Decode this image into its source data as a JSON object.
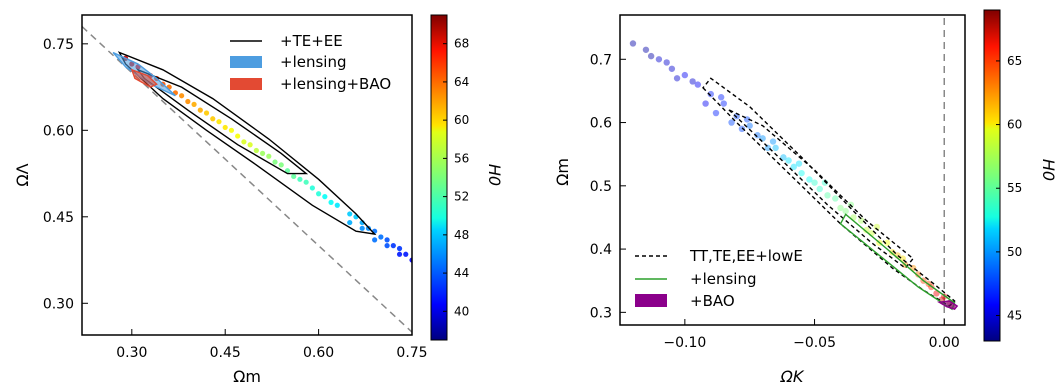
{
  "chart_data": [
    {
      "type": "scatter",
      "xlabel": "Ωm",
      "ylabel": "ΩΛ",
      "xlim": [
        0.22,
        0.75
      ],
      "ylim": [
        0.245,
        0.8
      ],
      "xticks": [
        0.3,
        0.45,
        0.6,
        0.75
      ],
      "xtick_labels": [
        "0.30",
        "0.45",
        "0.60",
        "0.75"
      ],
      "yticks": [
        0.3,
        0.45,
        0.6,
        0.75
      ],
      "ytick_labels": [
        "0.30",
        "0.45",
        "0.60",
        "0.75"
      ],
      "grid": false,
      "reference_line": {
        "style": "dashed",
        "color": "#888888",
        "relation": "ΩΛ = 1 − Ωm",
        "points": [
          [
            0.22,
            0.78
          ],
          [
            0.755,
            0.245
          ]
        ]
      },
      "legend": {
        "position": "top-right",
        "entries": [
          {
            "label": "+TE+EE",
            "style": "line",
            "color": "#000000"
          },
          {
            "label": "+lensing",
            "style": "patch",
            "color": "#4d9de0"
          },
          {
            "label": "+lensing+BAO",
            "style": "patch",
            "color": "#e34a33"
          }
        ]
      },
      "colorbar": {
        "label": "H0",
        "min": 37,
        "max": 71,
        "ticks": [
          40,
          44,
          48,
          52,
          56,
          60,
          64,
          68
        ],
        "tick_labels": [
          "40",
          "44",
          "48",
          "52",
          "56",
          "60",
          "64",
          "68"
        ]
      },
      "series": [
        {
          "name": "+TE+EE",
          "kind": "contour",
          "color": "#000000",
          "outer": [
            [
              0.28,
              0.735
            ],
            [
              0.35,
              0.705
            ],
            [
              0.43,
              0.655
            ],
            [
              0.52,
              0.585
            ],
            [
              0.6,
              0.515
            ],
            [
              0.66,
              0.455
            ],
            [
              0.69,
              0.42
            ],
            [
              0.66,
              0.425
            ],
            [
              0.59,
              0.47
            ],
            [
              0.5,
              0.54
            ],
            [
              0.42,
              0.6
            ],
            [
              0.35,
              0.655
            ],
            [
              0.29,
              0.715
            ],
            [
              0.28,
              0.735
            ]
          ],
          "inner": [
            [
              0.31,
              0.705
            ],
            [
              0.38,
              0.675
            ],
            [
              0.46,
              0.62
            ],
            [
              0.54,
              0.56
            ],
            [
              0.58,
              0.525
            ],
            [
              0.55,
              0.525
            ],
            [
              0.47,
              0.575
            ],
            [
              0.39,
              0.635
            ],
            [
              0.32,
              0.69
            ],
            [
              0.31,
              0.705
            ]
          ]
        },
        {
          "name": "+lensing",
          "kind": "contour",
          "color": "#4d9de0",
          "outer": [
            [
              0.27,
              0.735
            ],
            [
              0.31,
              0.715
            ],
            [
              0.34,
              0.69
            ],
            [
              0.37,
              0.66
            ],
            [
              0.33,
              0.68
            ],
            [
              0.29,
              0.71
            ],
            [
              0.27,
              0.735
            ]
          ]
        },
        {
          "name": "+lensing+BAO",
          "kind": "contour",
          "color": "#e34a33",
          "outer": [
            [
              0.3,
              0.705
            ],
            [
              0.325,
              0.695
            ],
            [
              0.34,
              0.68
            ],
            [
              0.33,
              0.675
            ],
            [
              0.305,
              0.69
            ],
            [
              0.3,
              0.705
            ]
          ]
        },
        {
          "name": "samples",
          "kind": "scatter",
          "colored_by": "H0",
          "points": [
            [
              0.29,
              0.725,
              69
            ],
            [
              0.31,
              0.71,
              67
            ],
            [
              0.33,
              0.695,
              66
            ],
            [
              0.35,
              0.68,
              64
            ],
            [
              0.37,
              0.665,
              63
            ],
            [
              0.39,
              0.65,
              62
            ],
            [
              0.41,
              0.635,
              61
            ],
            [
              0.43,
              0.62,
              60
            ],
            [
              0.45,
              0.605,
              59
            ],
            [
              0.47,
              0.59,
              58
            ],
            [
              0.49,
              0.575,
              57
            ],
            [
              0.51,
              0.56,
              55
            ],
            [
              0.53,
              0.545,
              54
            ],
            [
              0.55,
              0.53,
              53
            ],
            [
              0.57,
              0.515,
              52
            ],
            [
              0.59,
              0.5,
              51
            ],
            [
              0.61,
              0.485,
              50
            ],
            [
              0.63,
              0.47,
              49
            ],
            [
              0.65,
              0.455,
              48
            ],
            [
              0.67,
              0.44,
              47
            ],
            [
              0.68,
              0.43,
              46
            ],
            [
              0.69,
              0.425,
              45
            ],
            [
              0.7,
              0.415,
              45
            ],
            [
              0.71,
              0.41,
              44
            ],
            [
              0.72,
              0.4,
              43
            ],
            [
              0.73,
              0.395,
              43
            ],
            [
              0.74,
              0.385,
              42
            ],
            [
              0.75,
              0.375,
              41
            ],
            [
              0.66,
              0.45,
              48
            ],
            [
              0.62,
              0.475,
              50
            ],
            [
              0.58,
              0.51,
              52
            ],
            [
              0.54,
              0.54,
              54
            ],
            [
              0.5,
              0.565,
              56
            ],
            [
              0.46,
              0.6,
              58
            ],
            [
              0.42,
              0.63,
              60
            ],
            [
              0.38,
              0.66,
              62
            ],
            [
              0.34,
              0.69,
              65
            ],
            [
              0.3,
              0.715,
              68
            ],
            [
              0.65,
              0.44,
              47
            ],
            [
              0.67,
              0.43,
              46
            ],
            [
              0.69,
              0.41,
              45
            ],
            [
              0.71,
              0.4,
              44
            ],
            [
              0.73,
              0.385,
              42
            ],
            [
              0.6,
              0.49,
              51
            ],
            [
              0.56,
              0.52,
              53
            ],
            [
              0.52,
              0.555,
              55
            ],
            [
              0.48,
              0.58,
              57
            ],
            [
              0.44,
              0.615,
              59
            ],
            [
              0.4,
              0.645,
              61
            ],
            [
              0.36,
              0.675,
              63
            ]
          ]
        }
      ]
    },
    {
      "type": "scatter",
      "xlabel": "ΩK",
      "ylabel": "Ωm",
      "xlim": [
        -0.125,
        0.008
      ],
      "ylim": [
        0.28,
        0.77
      ],
      "xticks": [
        -0.1,
        -0.05,
        0.0
      ],
      "xtick_labels": [
        "−0.10",
        "−0.05",
        "0.00"
      ],
      "yticks": [
        0.3,
        0.4,
        0.5,
        0.6,
        0.7
      ],
      "ytick_labels": [
        "0.3",
        "0.4",
        "0.5",
        "0.6",
        "0.7"
      ],
      "grid": false,
      "reference_line": {
        "style": "dashed",
        "color": "#888888",
        "relation": "ΩK = 0",
        "points": [
          [
            0.0,
            0.28
          ],
          [
            0.0,
            0.77
          ]
        ]
      },
      "legend": {
        "position": "lower-left",
        "entries": [
          {
            "label": "TT,TE,EE+lowE",
            "style": "dashed-line",
            "color": "#000000"
          },
          {
            "label": "+lensing",
            "style": "line",
            "color": "#2ca02c"
          },
          {
            "label": "+BAO",
            "style": "patch",
            "color": "#8b008b"
          }
        ]
      },
      "colorbar": {
        "label": "H0",
        "min": 43,
        "max": 69,
        "ticks": [
          45,
          50,
          55,
          60,
          65
        ],
        "tick_labels": [
          "45",
          "50",
          "55",
          "60",
          "65"
        ]
      },
      "series": [
        {
          "name": "TT,TE,EE+lowE",
          "kind": "contour",
          "color": "#000000",
          "dashed": true,
          "outer": [
            [
              -0.093,
              0.655
            ],
            [
              -0.08,
              0.6
            ],
            [
              -0.06,
              0.52
            ],
            [
              -0.04,
              0.44
            ],
            [
              -0.02,
              0.37
            ],
            [
              -0.008,
              0.335
            ],
            [
              0.002,
              0.31
            ],
            [
              0.004,
              0.318
            ],
            [
              -0.004,
              0.345
            ],
            [
              -0.018,
              0.39
            ],
            [
              -0.035,
              0.46
            ],
            [
              -0.055,
              0.545
            ],
            [
              -0.075,
              0.625
            ],
            [
              -0.09,
              0.67
            ],
            [
              -0.093,
              0.655
            ]
          ],
          "inner": [
            [
              -0.083,
              0.62
            ],
            [
              -0.065,
              0.55
            ],
            [
              -0.045,
              0.47
            ],
            [
              -0.028,
              0.41
            ],
            [
              -0.015,
              0.37
            ],
            [
              -0.012,
              0.385
            ],
            [
              -0.03,
              0.445
            ],
            [
              -0.05,
              0.525
            ],
            [
              -0.07,
              0.595
            ],
            [
              -0.083,
              0.62
            ]
          ]
        },
        {
          "name": "+lensing",
          "kind": "contour",
          "color": "#2ca02c",
          "outer": [
            [
              -0.04,
              0.44
            ],
            [
              -0.025,
              0.39
            ],
            [
              -0.01,
              0.34
            ],
            [
              0.003,
              0.305
            ],
            [
              0.004,
              0.315
            ],
            [
              -0.008,
              0.35
            ],
            [
              -0.022,
              0.4
            ],
            [
              -0.038,
              0.455
            ],
            [
              -0.04,
              0.44
            ]
          ]
        },
        {
          "name": "+BAO",
          "kind": "contour",
          "color": "#8b008b",
          "outer": [
            [
              -0.002,
              0.316
            ],
            [
              0.001,
              0.309
            ],
            [
              0.004,
              0.305
            ],
            [
              0.005,
              0.31
            ],
            [
              0.002,
              0.318
            ],
            [
              -0.002,
              0.316
            ]
          ]
        },
        {
          "name": "samples",
          "kind": "scatter",
          "colored_by": "H0",
          "points": [
            [
              -0.12,
              0.725,
              44
            ],
            [
              -0.115,
              0.715,
              44
            ],
            [
              -0.11,
              0.7,
              45
            ],
            [
              -0.105,
              0.685,
              45
            ],
            [
              -0.1,
              0.675,
              46
            ],
            [
              -0.095,
              0.66,
              46
            ],
            [
              -0.09,
              0.645,
              47
            ],
            [
              -0.085,
              0.63,
              47
            ],
            [
              -0.08,
              0.61,
              48
            ],
            [
              -0.075,
              0.595,
              49
            ],
            [
              -0.07,
              0.575,
              50
            ],
            [
              -0.065,
              0.56,
              51
            ],
            [
              -0.06,
              0.54,
              52
            ],
            [
              -0.055,
              0.52,
              53
            ],
            [
              -0.05,
              0.505,
              54
            ],
            [
              -0.045,
              0.485,
              55
            ],
            [
              -0.04,
              0.465,
              56
            ],
            [
              -0.035,
              0.45,
              57
            ],
            [
              -0.03,
              0.43,
              58
            ],
            [
              -0.025,
              0.41,
              59
            ],
            [
              -0.02,
              0.395,
              60
            ],
            [
              -0.015,
              0.375,
              62
            ],
            [
              -0.01,
              0.36,
              63
            ],
            [
              -0.005,
              0.34,
              65
            ],
            [
              0.0,
              0.325,
              66
            ],
            [
              0.003,
              0.31,
              68
            ],
            [
              -0.088,
              0.615,
              47
            ],
            [
              -0.078,
              0.59,
              48
            ],
            [
              -0.068,
              0.56,
              50
            ],
            [
              -0.058,
              0.53,
              52
            ],
            [
              -0.048,
              0.495,
              54
            ],
            [
              -0.038,
              0.46,
              56
            ],
            [
              -0.028,
              0.425,
              58
            ],
            [
              -0.018,
              0.39,
              61
            ],
            [
              -0.008,
              0.35,
              64
            ],
            [
              -0.092,
              0.63,
              46
            ],
            [
              -0.082,
              0.6,
              48
            ],
            [
              -0.072,
              0.58,
              49
            ],
            [
              -0.062,
              0.545,
              51
            ],
            [
              -0.052,
              0.51,
              53
            ],
            [
              -0.042,
              0.48,
              55
            ],
            [
              -0.032,
              0.445,
              57
            ],
            [
              -0.022,
              0.41,
              59
            ],
            [
              -0.012,
              0.37,
              62
            ],
            [
              -0.097,
              0.665,
              45
            ],
            [
              -0.107,
              0.695,
              45
            ],
            [
              -0.113,
              0.705,
              44
            ],
            [
              -0.103,
              0.67,
              45
            ],
            [
              -0.086,
              0.64,
              47
            ],
            [
              -0.076,
              0.605,
              48
            ],
            [
              -0.066,
              0.57,
              50
            ],
            [
              -0.056,
              0.535,
              52
            ],
            [
              -0.046,
              0.505,
              54
            ],
            [
              -0.036,
              0.47,
              56
            ],
            [
              -0.026,
              0.435,
              58
            ],
            [
              -0.016,
              0.385,
              60
            ],
            [
              -0.006,
              0.345,
              64
            ],
            [
              -0.001,
              0.32,
              67
            ],
            [
              0.002,
              0.315,
              68
            ],
            [
              -0.003,
              0.33,
              66
            ]
          ]
        }
      ]
    }
  ]
}
